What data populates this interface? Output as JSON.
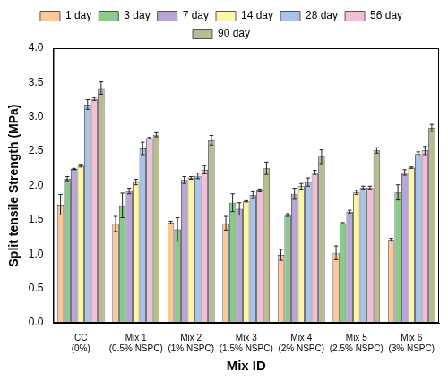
{
  "chart_data": {
    "type": "bar",
    "x_label": "Mix ID",
    "y_label": "Split tensile Strength (MPa)",
    "categories": [
      "CC (0%)",
      "Mix 1 (0.5% NSPC)",
      "Mix 2 (1% NSPC)",
      "Mix 3 (1.5% NSPC)",
      "Mix 4 (2% NSPC)",
      "Mix 5 (2.5% NSPC)",
      "Mix 6 (3% NSPC)"
    ],
    "series": [
      {
        "name": "1 day",
        "color": "#f9c89b",
        "values": [
          1.72,
          1.44,
          1.46,
          1.45,
          0.99,
          1.02,
          1.21
        ],
        "errors": [
          0.15,
          0.11,
          0.02,
          0.1,
          0.08,
          0.1,
          0.02
        ]
      },
      {
        "name": "3 day",
        "color": "#8cc98c",
        "values": [
          2.1,
          1.71,
          1.36,
          1.75,
          1.57,
          1.45,
          1.9
        ],
        "errors": [
          0.03,
          0.18,
          0.17,
          0.13,
          0.02,
          0.01,
          0.11
        ]
      },
      {
        "name": "7 day",
        "color": "#b9a6d9",
        "values": [
          2.24,
          1.92,
          2.08,
          1.66,
          1.88,
          1.62,
          2.19
        ],
        "errors": [
          0.01,
          0.04,
          0.05,
          0.09,
          0.08,
          0.02,
          0.04
        ]
      },
      {
        "name": "14 day",
        "color": "#fdf6a6",
        "values": [
          2.29,
          2.05,
          2.11,
          1.77,
          1.99,
          1.9,
          2.26
        ],
        "errors": [
          0.02,
          0.04,
          0.02,
          0.01,
          0.04,
          0.03,
          0.01
        ]
      },
      {
        "name": "28 day",
        "color": "#a9c4e8",
        "values": [
          3.18,
          2.54,
          2.14,
          1.86,
          2.05,
          1.97,
          2.46
        ],
        "errors": [
          0.07,
          0.09,
          0.04,
          0.05,
          0.06,
          0.02,
          0.03
        ]
      },
      {
        "name": "56 day",
        "color": "#f2bfd8",
        "values": [
          3.26,
          2.69,
          2.23,
          1.93,
          2.19,
          1.97,
          2.51
        ],
        "errors": [
          0.02,
          0.01,
          0.06,
          0.02,
          0.03,
          0.02,
          0.06
        ]
      },
      {
        "name": "90 day",
        "color": "#b8bc8f",
        "values": [
          3.42,
          2.74,
          2.66,
          2.25,
          2.42,
          2.51,
          2.84
        ],
        "errors": [
          0.09,
          0.03,
          0.07,
          0.09,
          0.1,
          0.04,
          0.05
        ]
      }
    ],
    "ylim": [
      0,
      4
    ],
    "yticks": [
      {
        "value": 0,
        "label": "0.0"
      },
      0.5,
      {
        "value": 1,
        "label": "1.0"
      },
      1.5,
      {
        "value": 2,
        "label": "2.0"
      },
      2.5,
      {
        "value": 3,
        "label": "3.0"
      },
      3.5,
      {
        "value": 4,
        "label": "4.0"
      }
    ],
    "grid": false,
    "legend": "top"
  }
}
